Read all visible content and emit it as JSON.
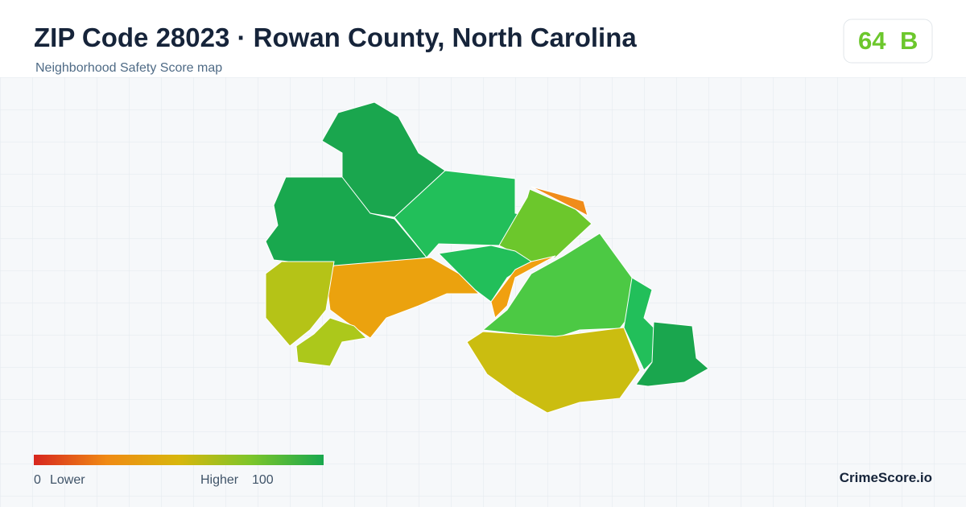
{
  "header": {
    "title": "ZIP Code 28023 · Rowan County, North Carolina",
    "subtitle": "Neighborhood Safety Score map"
  },
  "badge": {
    "score": 64,
    "grade": "B"
  },
  "legend": {
    "min": 0,
    "min_label": "Lower",
    "max_label": "Higher",
    "max": 100
  },
  "brand": "CrimeScore.io"
}
